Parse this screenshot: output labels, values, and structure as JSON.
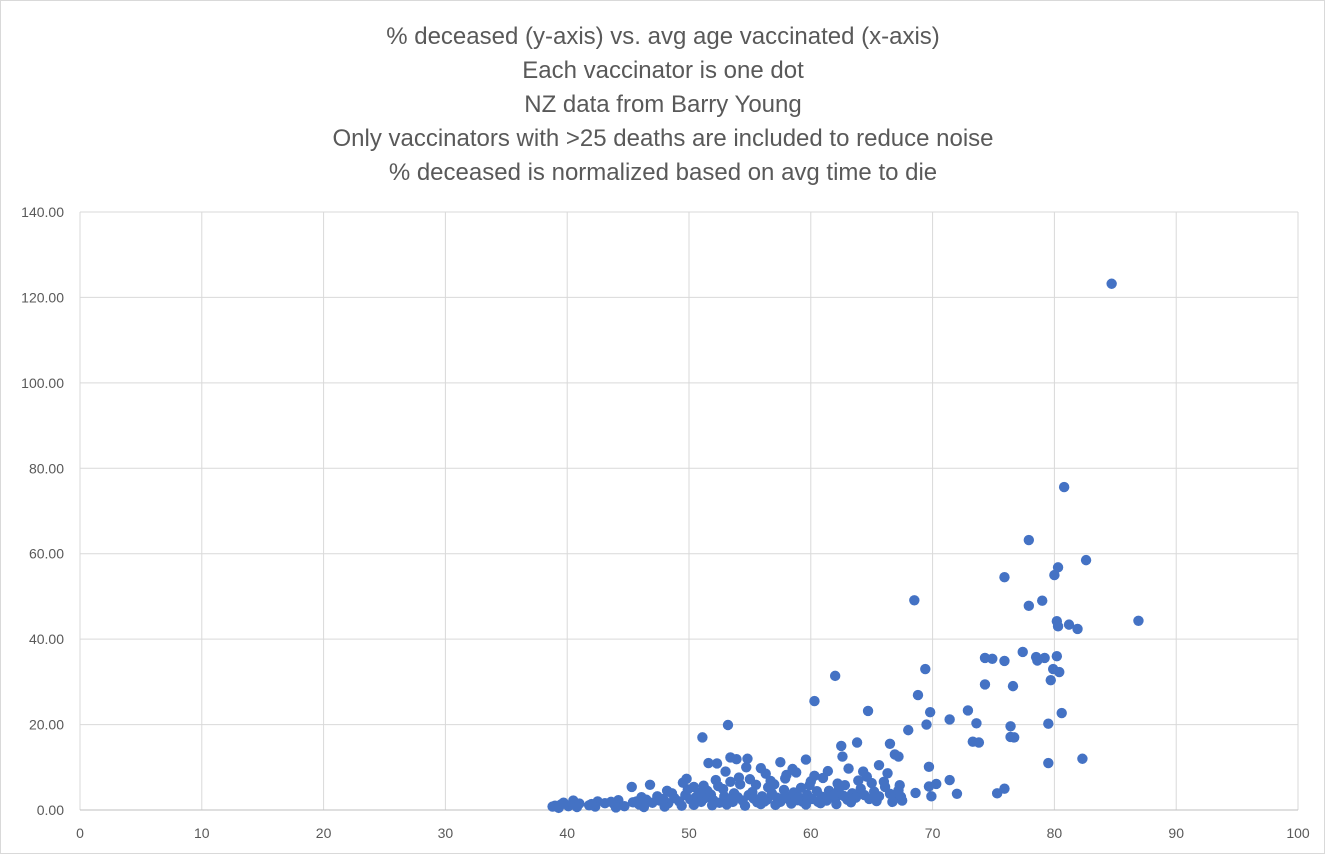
{
  "chart_data": {
    "type": "scatter",
    "title_lines": [
      "% deceased (y-axis) vs. avg age vaccinated (x-axis)",
      "Each vaccinator is one dot",
      "NZ data from Barry Young",
      "Only vaccinators with >25 deaths are included to reduce noise",
      "% deceased is normalized based on avg time to die"
    ],
    "xlabel": "",
    "ylabel": "",
    "xlim": [
      0,
      100
    ],
    "ylim": [
      0,
      140
    ],
    "x_ticks": [
      0,
      10,
      20,
      30,
      40,
      50,
      60,
      70,
      80,
      90,
      100
    ],
    "y_ticks": [
      0,
      20,
      40,
      60,
      80,
      100,
      120,
      140
    ],
    "y_tick_labels": [
      "0.00",
      "20.00",
      "40.00",
      "60.00",
      "80.00",
      "100.00",
      "120.00",
      "140.00"
    ],
    "grid": true,
    "legend": "none",
    "marker_color": "#4472c4",
    "series": [
      {
        "name": "vaccinators",
        "points": [
          [
            84.7,
            123.2
          ],
          [
            80.8,
            75.6
          ],
          [
            77.9,
            63.2
          ],
          [
            82.6,
            58.5
          ],
          [
            80.3,
            56.8
          ],
          [
            75.9,
            54.5
          ],
          [
            80.0,
            55.0
          ],
          [
            68.5,
            49.1
          ],
          [
            79.0,
            49.0
          ],
          [
            77.9,
            47.8
          ],
          [
            86.9,
            44.3
          ],
          [
            80.2,
            44.2
          ],
          [
            81.2,
            43.4
          ],
          [
            80.3,
            43.0
          ],
          [
            81.9,
            42.4
          ],
          [
            77.4,
            37.0
          ],
          [
            78.5,
            35.8
          ],
          [
            79.2,
            35.6
          ],
          [
            78.6,
            35.0
          ],
          [
            80.2,
            36.0
          ],
          [
            74.3,
            35.6
          ],
          [
            74.9,
            35.4
          ],
          [
            75.9,
            34.9
          ],
          [
            69.4,
            33.0
          ],
          [
            79.9,
            33.0
          ],
          [
            80.4,
            32.3
          ],
          [
            62.0,
            31.4
          ],
          [
            79.7,
            30.4
          ],
          [
            74.3,
            29.4
          ],
          [
            76.6,
            29.0
          ],
          [
            68.8,
            26.9
          ],
          [
            60.3,
            25.5
          ],
          [
            64.7,
            23.2
          ],
          [
            69.8,
            22.9
          ],
          [
            72.9,
            23.3
          ],
          [
            80.6,
            22.7
          ],
          [
            71.4,
            21.2
          ],
          [
            73.6,
            20.3
          ],
          [
            53.2,
            19.9
          ],
          [
            69.5,
            20.0
          ],
          [
            76.4,
            19.6
          ],
          [
            79.5,
            20.2
          ],
          [
            68.0,
            18.7
          ],
          [
            76.4,
            17.1
          ],
          [
            76.7,
            17.0
          ],
          [
            51.1,
            17.0
          ],
          [
            73.3,
            16.0
          ],
          [
            73.8,
            15.8
          ],
          [
            62.5,
            15.0
          ],
          [
            63.8,
            15.8
          ],
          [
            66.5,
            15.5
          ],
          [
            66.9,
            13.0
          ],
          [
            62.6,
            12.5
          ],
          [
            67.2,
            12.5
          ],
          [
            53.4,
            12.3
          ],
          [
            53.9,
            11.9
          ],
          [
            54.8,
            12.0
          ],
          [
            51.6,
            11.0
          ],
          [
            52.3,
            10.9
          ],
          [
            57.5,
            11.2
          ],
          [
            59.6,
            11.8
          ],
          [
            65.6,
            10.5
          ],
          [
            69.7,
            10.1
          ],
          [
            79.5,
            11.0
          ],
          [
            82.3,
            12.0
          ],
          [
            54.7,
            10.0
          ],
          [
            55.9,
            9.8
          ],
          [
            58.5,
            9.6
          ],
          [
            63.1,
            9.7
          ],
          [
            64.3,
            9.0
          ],
          [
            66.3,
            8.6
          ],
          [
            53.0,
            9.0
          ],
          [
            56.3,
            8.5
          ],
          [
            58.0,
            8.2
          ],
          [
            60.3,
            8.0
          ],
          [
            61.0,
            7.5
          ],
          [
            52.2,
            7.0
          ],
          [
            49.8,
            7.3
          ],
          [
            49.5,
            6.4
          ],
          [
            71.4,
            7.0
          ],
          [
            70.3,
            6.1
          ],
          [
            69.7,
            5.5
          ],
          [
            46.8,
            5.9
          ],
          [
            45.3,
            5.4
          ],
          [
            50.4,
            5.4
          ],
          [
            54.2,
            6.0
          ],
          [
            56.5,
            5.3
          ],
          [
            59.9,
            5.8
          ],
          [
            62.8,
            5.8
          ],
          [
            75.9,
            5.0
          ],
          [
            75.3,
            3.9
          ],
          [
            72.0,
            3.8
          ],
          [
            68.6,
            4.0
          ],
          [
            69.9,
            3.2
          ],
          [
            64.0,
            4.0
          ],
          [
            61.5,
            4.5
          ],
          [
            57.8,
            4.7
          ],
          [
            55.2,
            4.2
          ],
          [
            53.7,
            3.9
          ],
          [
            51.5,
            4.5
          ],
          [
            48.2,
            4.5
          ],
          [
            47.4,
            3.2
          ],
          [
            46.1,
            3.0
          ],
          [
            44.2,
            2.3
          ],
          [
            42.5,
            2.0
          ],
          [
            40.5,
            2.2
          ],
          [
            41.0,
            1.5
          ],
          [
            39.5,
            1.3
          ],
          [
            39.0,
            1.0
          ],
          [
            38.8,
            0.8
          ],
          [
            39.3,
            0.5
          ],
          [
            40.1,
            0.9
          ],
          [
            41.8,
            1.1
          ],
          [
            42.3,
            0.8
          ],
          [
            43.1,
            1.6
          ],
          [
            43.9,
            1.2
          ],
          [
            44.7,
            0.9
          ],
          [
            45.4,
            1.8
          ],
          [
            45.9,
            1.3
          ],
          [
            46.5,
            2.4
          ],
          [
            47.0,
            1.7
          ],
          [
            47.6,
            2.2
          ],
          [
            48.3,
            1.6
          ],
          [
            48.8,
            2.8
          ],
          [
            49.2,
            2.0
          ],
          [
            49.7,
            3.5
          ],
          [
            50.1,
            2.5
          ],
          [
            50.6,
            3.1
          ],
          [
            51.0,
            1.9
          ],
          [
            51.3,
            2.8
          ],
          [
            51.8,
            3.6
          ],
          [
            52.0,
            2.3
          ],
          [
            52.5,
            1.7
          ],
          [
            52.9,
            3.2
          ],
          [
            53.3,
            2.6
          ],
          [
            53.6,
            1.9
          ],
          [
            54.0,
            3.0
          ],
          [
            54.4,
            2.2
          ],
          [
            54.9,
            3.5
          ],
          [
            55.3,
            2.7
          ],
          [
            55.6,
            1.8
          ],
          [
            56.0,
            3.2
          ],
          [
            56.4,
            2.4
          ],
          [
            56.8,
            3.9
          ],
          [
            57.2,
            2.9
          ],
          [
            57.5,
            1.9
          ],
          [
            57.9,
            3.4
          ],
          [
            58.2,
            2.5
          ],
          [
            58.6,
            4.1
          ],
          [
            59.0,
            3.0
          ],
          [
            59.3,
            2.0
          ],
          [
            59.7,
            3.6
          ],
          [
            60.1,
            2.6
          ],
          [
            60.5,
            4.4
          ],
          [
            60.9,
            3.1
          ],
          [
            61.3,
            2.2
          ],
          [
            61.6,
            3.8
          ],
          [
            62.0,
            2.7
          ],
          [
            62.3,
            4.8
          ],
          [
            62.7,
            3.3
          ],
          [
            63.0,
            2.4
          ],
          [
            63.4,
            3.9
          ],
          [
            63.7,
            2.9
          ],
          [
            64.1,
            5.0
          ],
          [
            64.4,
            3.5
          ],
          [
            64.8,
            2.6
          ],
          [
            65.2,
            4.3
          ],
          [
            65.6,
            3.2
          ],
          [
            66.1,
            5.4
          ],
          [
            66.5,
            3.8
          ],
          [
            66.9,
            2.9
          ],
          [
            67.2,
            4.6
          ],
          [
            67.4,
            3.1
          ],
          [
            67.5,
            2.2
          ],
          [
            50.4,
            1.2
          ],
          [
            51.9,
            1.1
          ],
          [
            53.1,
            1.3
          ],
          [
            54.6,
            1.0
          ],
          [
            55.9,
            1.4
          ],
          [
            57.1,
            1.2
          ],
          [
            58.4,
            1.5
          ],
          [
            59.6,
            1.3
          ],
          [
            60.8,
            1.6
          ],
          [
            62.1,
            1.4
          ],
          [
            44.0,
            0.6
          ],
          [
            46.3,
            0.7
          ],
          [
            48.0,
            0.8
          ],
          [
            49.4,
            1.0
          ],
          [
            56.7,
            6.8
          ],
          [
            57.9,
            7.4
          ],
          [
            58.8,
            8.8
          ],
          [
            61.4,
            9.1
          ],
          [
            63.9,
            6.9
          ],
          [
            65.0,
            6.3
          ],
          [
            59.2,
            5.2
          ],
          [
            55.5,
            5.9
          ],
          [
            53.4,
            6.6
          ],
          [
            51.2,
            5.7
          ],
          [
            48.6,
            3.9
          ],
          [
            62.2,
            6.2
          ],
          [
            64.6,
            7.8
          ],
          [
            66.0,
            6.6
          ],
          [
            52.8,
            4.9
          ],
          [
            54.1,
            7.6
          ],
          [
            56.2,
            2.0
          ],
          [
            58.9,
            2.3
          ],
          [
            60.6,
            1.9
          ],
          [
            61.9,
            3.5
          ],
          [
            63.3,
            1.8
          ],
          [
            65.4,
            2.1
          ],
          [
            66.7,
            1.9
          ],
          [
            67.3,
            5.8
          ],
          [
            60.0,
            6.7
          ],
          [
            57.0,
            6.0
          ],
          [
            55.0,
            7.2
          ],
          [
            52.4,
            5.6
          ],
          [
            50.9,
            4.0
          ],
          [
            49.9,
            4.8
          ],
          [
            47.9,
            2.6
          ],
          [
            45.7,
            2.0
          ],
          [
            43.6,
            1.9
          ],
          [
            42.0,
            1.4
          ],
          [
            40.8,
            0.7
          ],
          [
            39.7,
            1.7
          ]
        ]
      }
    ]
  }
}
